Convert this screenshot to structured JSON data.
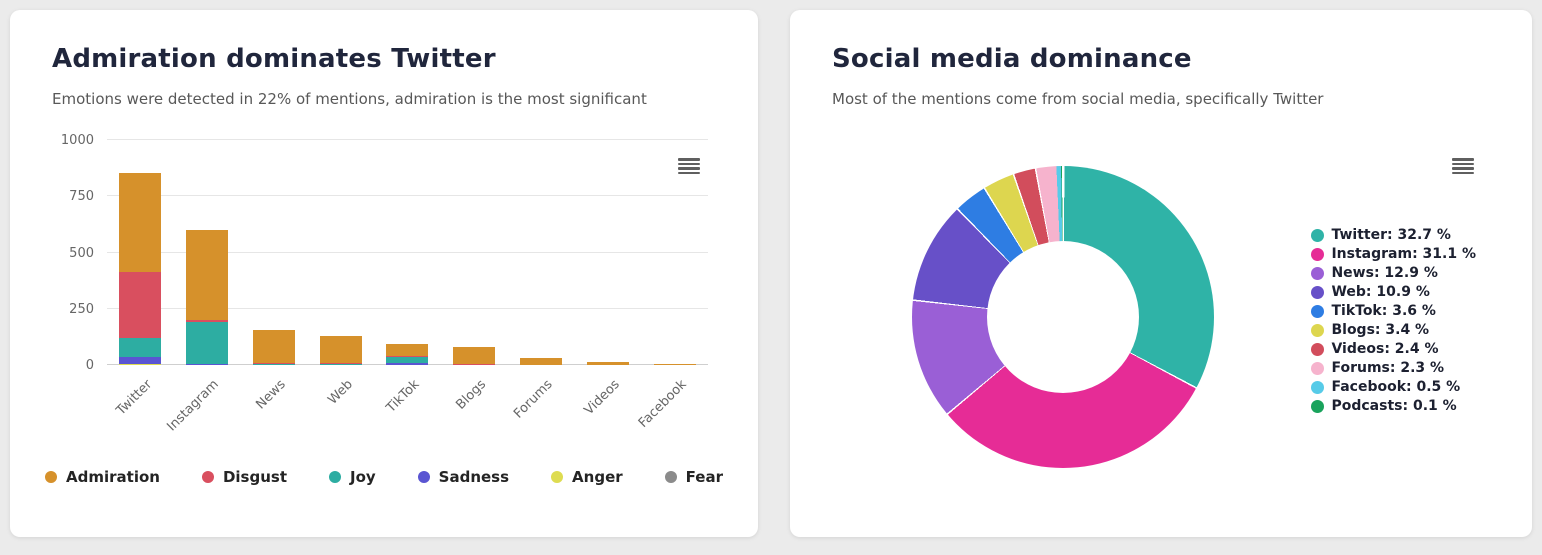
{
  "cards": {
    "emotions": {
      "title": "Admiration dominates Twitter",
      "subtitle": "Emotions were detected in 22% of mentions, admiration is the most significant",
      "menu_icon": "hamburger-menu-icon"
    },
    "sources": {
      "title": "Social media dominance",
      "subtitle": "Most of the mentions come from social media, specifically Twitter",
      "menu_icon": "hamburger-menu-icon"
    }
  },
  "chart_data": [
    {
      "type": "bar",
      "stacked": true,
      "title": "Admiration dominates Twitter",
      "categories": [
        "Twitter",
        "Instagram",
        "News",
        "Web",
        "TikTok",
        "Blogs",
        "Forums",
        "Videos",
        "Facebook"
      ],
      "series": [
        {
          "name": "Admiration",
          "color": "#d6912b",
          "values": [
            440,
            398,
            145,
            120,
            55,
            75,
            30,
            15,
            5
          ]
        },
        {
          "name": "Disgust",
          "color": "#d94f5f",
          "values": [
            295,
            12,
            2,
            2,
            5,
            2,
            0,
            0,
            0
          ]
        },
        {
          "name": "Joy",
          "color": "#2dada2",
          "values": [
            85,
            185,
            2,
            3,
            25,
            0,
            0,
            0,
            0
          ]
        },
        {
          "name": "Sadness",
          "color": "#5a55d2",
          "values": [
            30,
            5,
            0,
            0,
            10,
            0,
            0,
            0,
            0
          ]
        },
        {
          "name": "Anger",
          "color": "#dedc51",
          "values": [
            5,
            0,
            0,
            0,
            0,
            0,
            0,
            0,
            0
          ]
        },
        {
          "name": "Fear",
          "color": "#8b8b8b",
          "values": [
            0,
            0,
            0,
            0,
            0,
            0,
            0,
            0,
            0
          ]
        }
      ],
      "xlabel": "",
      "ylabel": "",
      "ylim": [
        0,
        1000
      ],
      "yticks": [
        0,
        250,
        500,
        750,
        1000
      ],
      "grid": true,
      "legend_position": "bottom"
    },
    {
      "type": "pie",
      "donut": true,
      "title": "Social media dominance",
      "slices": [
        {
          "label": "Twitter",
          "value": 32.7,
          "color": "#2fb3a7"
        },
        {
          "label": "Instagram",
          "value": 31.1,
          "color": "#e62c96"
        },
        {
          "label": "News",
          "value": 12.9,
          "color": "#9a5fd6"
        },
        {
          "label": "Web",
          "value": 10.9,
          "color": "#6750c8"
        },
        {
          "label": "TikTok",
          "value": 3.6,
          "color": "#2e7de3"
        },
        {
          "label": "Blogs",
          "value": 3.4,
          "color": "#ddd64f"
        },
        {
          "label": "Videos",
          "value": 2.4,
          "color": "#d24d5c"
        },
        {
          "label": "Forums",
          "value": 2.3,
          "color": "#f6b3cd"
        },
        {
          "label": "Facebook",
          "value": 0.5,
          "color": "#57cbe8"
        },
        {
          "label": "Podcasts",
          "value": 0.1,
          "color": "#19a35c"
        }
      ],
      "legend_position": "right",
      "legend_format": "{label}: {value} %"
    }
  ]
}
